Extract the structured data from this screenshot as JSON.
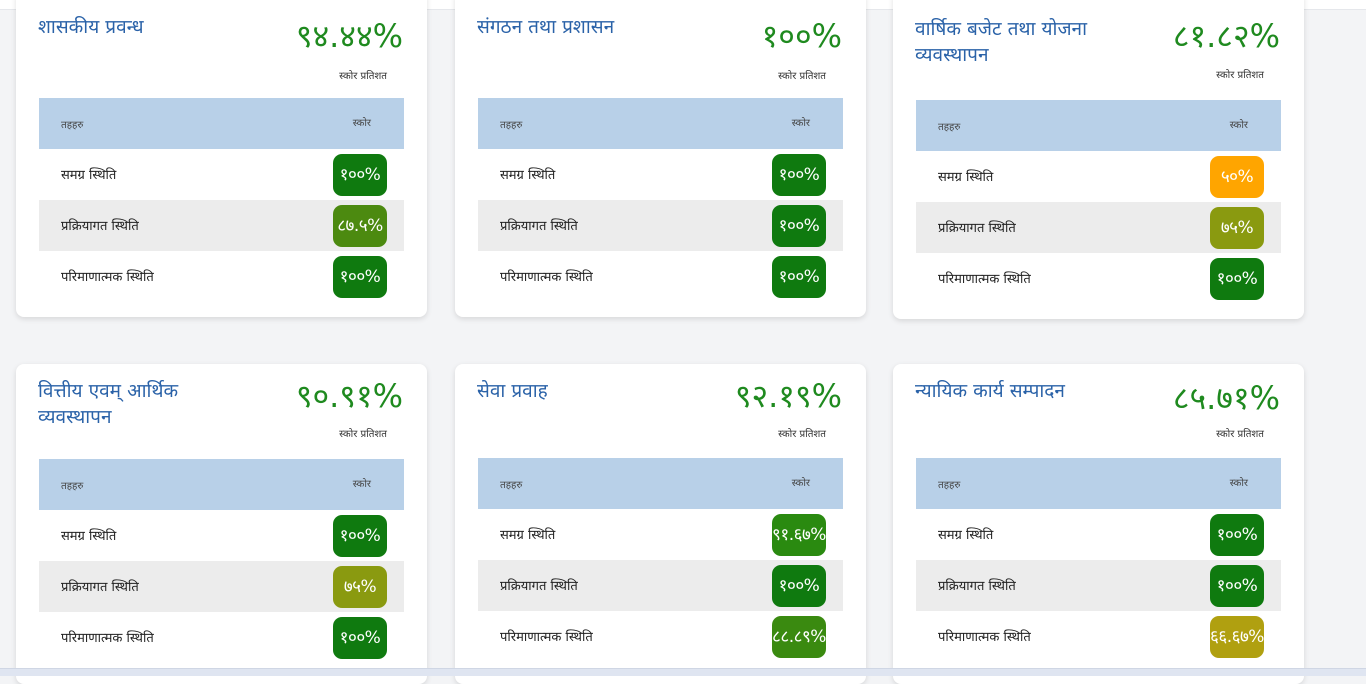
{
  "table_header": {
    "col1": "तहहरु",
    "col2": "स्कोर"
  },
  "score_caption": "स्कोर प्रतिशत",
  "colors": {
    "green": "#0f7a0f",
    "olive_green": "#4c8a10",
    "olive": "#8a9a10",
    "orange": "#ffa500",
    "mustard": "#b0a010",
    "title_blue": "#2a62a8",
    "score_green": "#1f8a1f"
  },
  "cards": [
    {
      "title": "शासकीय प्रवन्ध",
      "score": "९४.४४%",
      "rows": [
        {
          "label": "समग्र स्थिति",
          "value": "१००%",
          "color": "#0f7a0f"
        },
        {
          "label": "प्रक्रियागत स्थिति",
          "value": "८७.५%",
          "color": "#4c8a10"
        },
        {
          "label": "परिमाणात्मक स्थिति",
          "value": "१००%",
          "color": "#0f7a0f"
        }
      ]
    },
    {
      "title": "संगठन तथा प्रशासन",
      "score": "१००%",
      "rows": [
        {
          "label": "समग्र स्थिति",
          "value": "१००%",
          "color": "#0f7a0f"
        },
        {
          "label": "प्रक्रियागत स्थिति",
          "value": "१००%",
          "color": "#0f7a0f"
        },
        {
          "label": "परिमाणात्मक स्थिति",
          "value": "१००%",
          "color": "#0f7a0f"
        }
      ]
    },
    {
      "title": "वार्षिक बजेट तथा योजना व्यवस्थापन",
      "score": "८१.८२%",
      "rows": [
        {
          "label": "समग्र स्थिति",
          "value": "५०%",
          "color": "#ffa500"
        },
        {
          "label": "प्रक्रियागत स्थिति",
          "value": "७५%",
          "color": "#8a9a10"
        },
        {
          "label": "परिमाणात्मक स्थिति",
          "value": "१००%",
          "color": "#0f7a0f"
        }
      ]
    },
    {
      "title": "वित्तीय एवम् आर्थिक व्यवस्थापन",
      "score": "९०.९१%",
      "rows": [
        {
          "label": "समग्र स्थिति",
          "value": "१००%",
          "color": "#0f7a0f"
        },
        {
          "label": "प्रक्रियागत स्थिति",
          "value": "७५%",
          "color": "#8a9a10"
        },
        {
          "label": "परिमाणात्मक स्थिति",
          "value": "१००%",
          "color": "#0f7a0f"
        }
      ]
    },
    {
      "title": "सेवा प्रवाह",
      "score": "९२.१९%",
      "rows": [
        {
          "label": "समग्र स्थिति",
          "value": "९१.६७%",
          "color": "#2a8a10"
        },
        {
          "label": "प्रक्रियागत स्थिति",
          "value": "१००%",
          "color": "#0f7a0f"
        },
        {
          "label": "परिमाणात्मक स्थिति",
          "value": "८८.८९%",
          "color": "#3a8a10"
        }
      ]
    },
    {
      "title": "न्यायिक कार्य सम्पादन",
      "score": "८५.७१%",
      "rows": [
        {
          "label": "समग्र स्थिति",
          "value": "१००%",
          "color": "#0f7a0f"
        },
        {
          "label": "प्रक्रियागत स्थिति",
          "value": "१००%",
          "color": "#0f7a0f"
        },
        {
          "label": "परिमाणात्मक स्थिति",
          "value": "६६.६७%",
          "color": "#b0a010"
        }
      ]
    }
  ]
}
